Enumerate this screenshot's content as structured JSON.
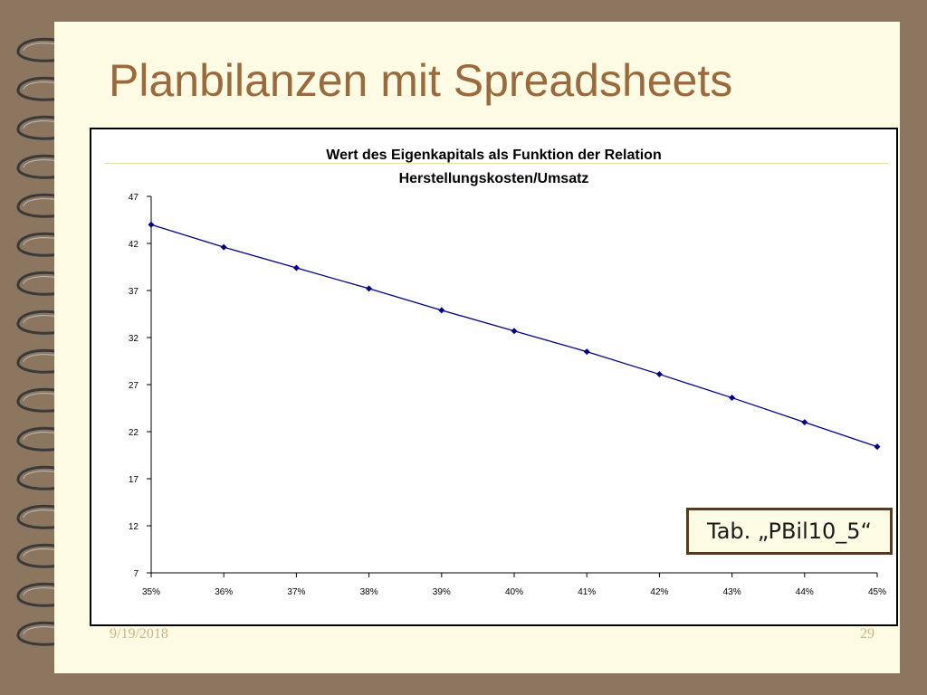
{
  "slide": {
    "title": "Planbilanzen mit Spreadsheets",
    "tab_label": "Tab. „PBil10_5“",
    "date": "9/19/2018",
    "page_number": "29"
  },
  "colors": {
    "background": "#8c7660",
    "page": "#fefbe4",
    "title": "#9a6a3c",
    "series": "#000080"
  },
  "chart_data": {
    "type": "line",
    "title_lines": [
      "Wert des Eigenkapitals als Funktion der Relation",
      "Herstellungskosten/Umsatz"
    ],
    "xlabel": "",
    "ylabel": "",
    "x": [
      "35%",
      "36%",
      "37%",
      "38%",
      "39%",
      "40%",
      "41%",
      "42%",
      "43%",
      "44%",
      "45%"
    ],
    "series": [
      {
        "values": [
          44.0,
          41.6,
          39.4,
          37.2,
          34.9,
          32.7,
          30.5,
          28.1,
          25.6,
          23.0,
          20.4
        ]
      }
    ],
    "y_ticks": [
      7,
      12,
      17,
      22,
      27,
      32,
      37,
      42,
      47
    ],
    "ylim": [
      7,
      47
    ],
    "grid": false,
    "legend": "none"
  }
}
